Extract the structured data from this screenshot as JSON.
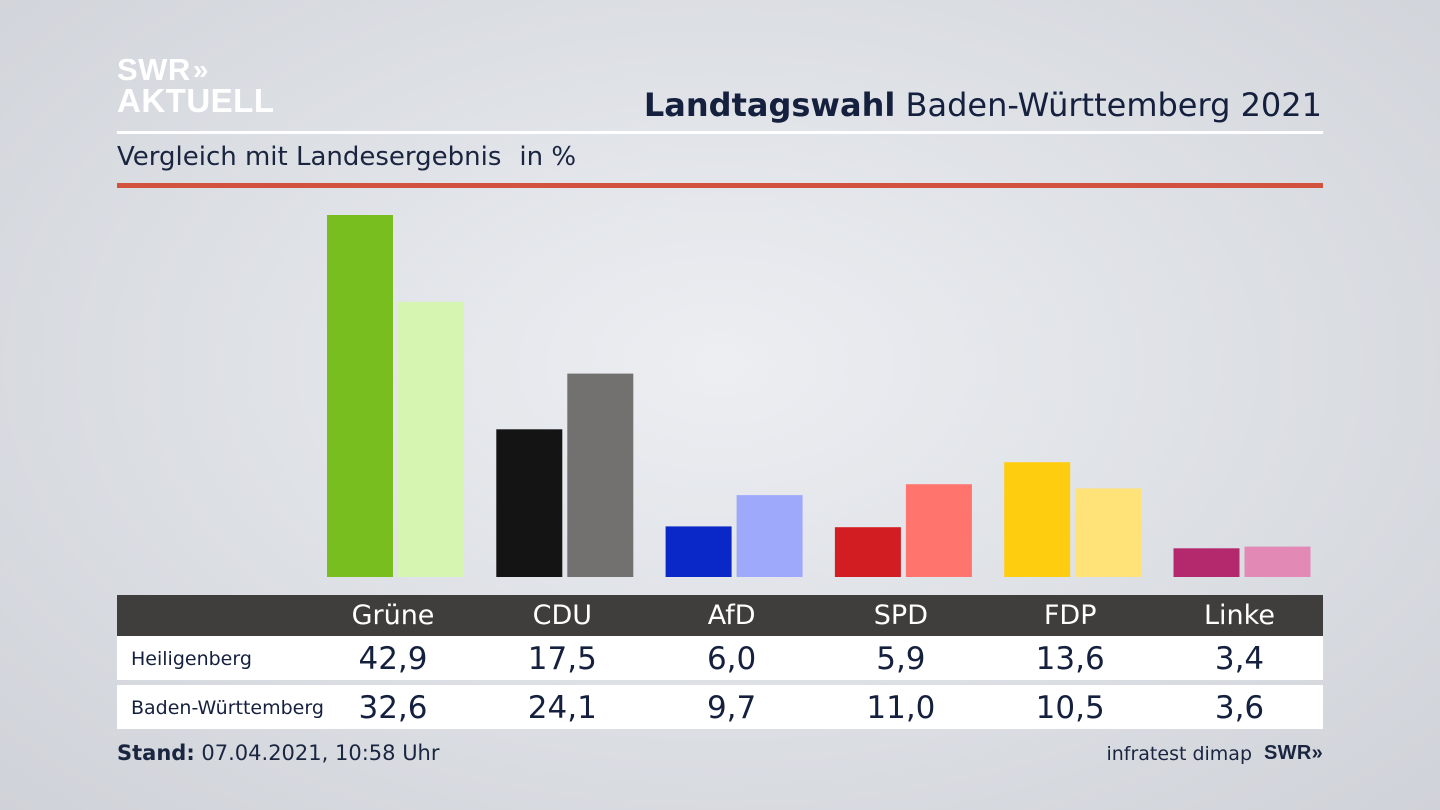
{
  "logo": {
    "line1": "SWR",
    "chevrons": "»",
    "line2": "AKTUELL"
  },
  "header": {
    "title_bold": "Landtagswahl",
    "title_rest": "Baden-Württemberg 2021"
  },
  "subtitle": {
    "text": "Vergleich mit Landesergebnis",
    "unit": "in %"
  },
  "table": {
    "parties": [
      "Grüne",
      "CDU",
      "AfD",
      "SPD",
      "FDP",
      "Linke"
    ],
    "rows": [
      {
        "label": "Heiligenberg",
        "values": [
          "42,9",
          "17,5",
          "6,0",
          "5,9",
          "13,6",
          "3,4"
        ]
      },
      {
        "label": "Baden-Württemberg",
        "values": [
          "32,6",
          "24,1",
          "9,7",
          "11,0",
          "10,5",
          "3,6"
        ]
      }
    ]
  },
  "footer": {
    "stand_label": "Stand:",
    "stand_value": "07.04.2021, 10:58 Uhr",
    "source": "infratest dimap",
    "source_logo": "SWR»"
  },
  "chart_data": {
    "type": "bar",
    "title": "Landtagswahl Baden-Württemberg 2021",
    "subtitle": "Vergleich mit Landesergebnis",
    "ylabel": "in %",
    "categories": [
      "Grüne",
      "CDU",
      "AfD",
      "SPD",
      "FDP",
      "Linke"
    ],
    "series": [
      {
        "name": "Heiligenberg",
        "values": [
          42.9,
          17.5,
          6.0,
          5.9,
          13.6,
          3.4
        ],
        "colors": [
          "#78be1e",
          "#141414",
          "#0a28c8",
          "#d21e23",
          "#ffcd0f",
          "#b4286e"
        ]
      },
      {
        "name": "Baden-Württemberg",
        "values": [
          32.6,
          24.1,
          9.7,
          11.0,
          10.5,
          3.6
        ],
        "colors": [
          "#d6f5b0",
          "#73716f",
          "#9fa9fc",
          "#ff756d",
          "#ffe278",
          "#e289b6"
        ]
      }
    ],
    "ylim": [
      0,
      42.9
    ],
    "grid": false,
    "legend": "none"
  }
}
